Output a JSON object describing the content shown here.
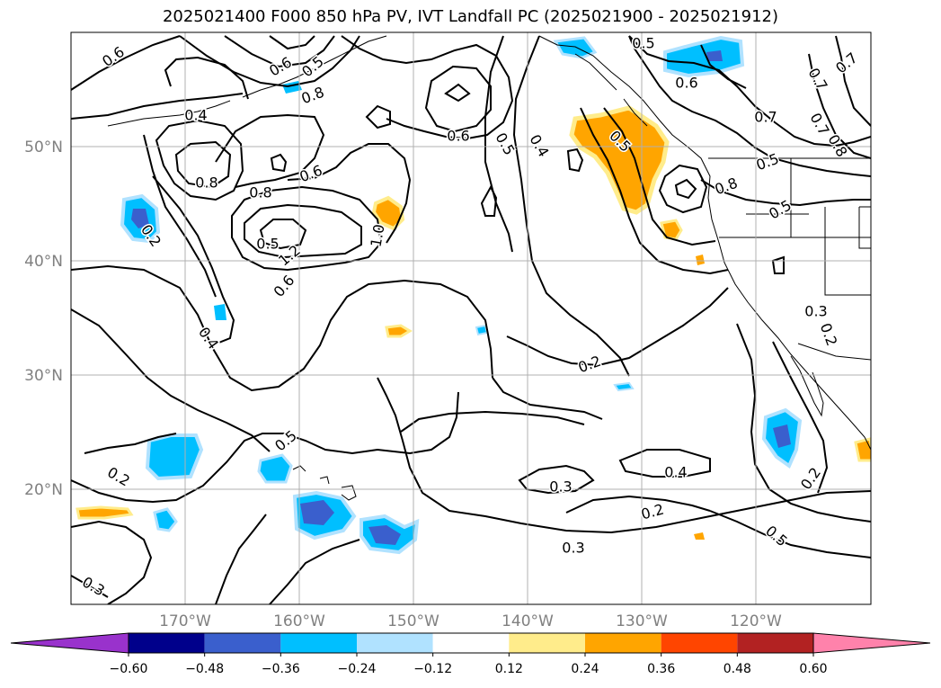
{
  "title": "2025021400 F000 850 hPa PV, IVT Landfall PC (2025021900 - 2025021912)",
  "map": {
    "longitude_labels": [
      "170°W",
      "160°W",
      "150°W",
      "140°W",
      "130°W",
      "120°W"
    ],
    "latitude_labels": [
      "20°N",
      "30°N",
      "40°N",
      "50°N"
    ],
    "grid": true
  },
  "contour_labels": [
    "0.6",
    "0.4",
    "0.8",
    "0.6",
    "0.8",
    "0.5",
    "0.6",
    "0.5",
    "0.4",
    "0.6",
    "0.5",
    "0.6",
    "0.5",
    "0.8",
    "0.7",
    "0.7",
    "0.5",
    "0.8",
    "0.7",
    "0.8",
    "0.7",
    "0.5",
    "0.5",
    "1.2",
    "1.0",
    "0.6",
    "0.4",
    "0.2",
    "0.3",
    "0.2",
    "0.5",
    "0.2",
    "0.2",
    "0.3",
    "0.3",
    "0.4",
    "0.2",
    "0.3",
    "0.5",
    "0.2"
  ],
  "colorbar": {
    "ticks": [
      "−0.60",
      "−0.48",
      "−0.36",
      "−0.24",
      "−0.12",
      "0.12",
      "0.24",
      "0.36",
      "0.48",
      "0.60"
    ],
    "colors": [
      "#9932cc",
      "#00008b",
      "#3a5fcd",
      "#00bfff",
      "#b0e2ff",
      "#ffffff",
      "#ffec8b",
      "#ffa500",
      "#ff4500",
      "#b22222",
      "#ff82ab"
    ],
    "extend": "both"
  },
  "colors": {
    "coastline": "#000000",
    "grid": "#b0b0b0",
    "contour": "#000000"
  }
}
